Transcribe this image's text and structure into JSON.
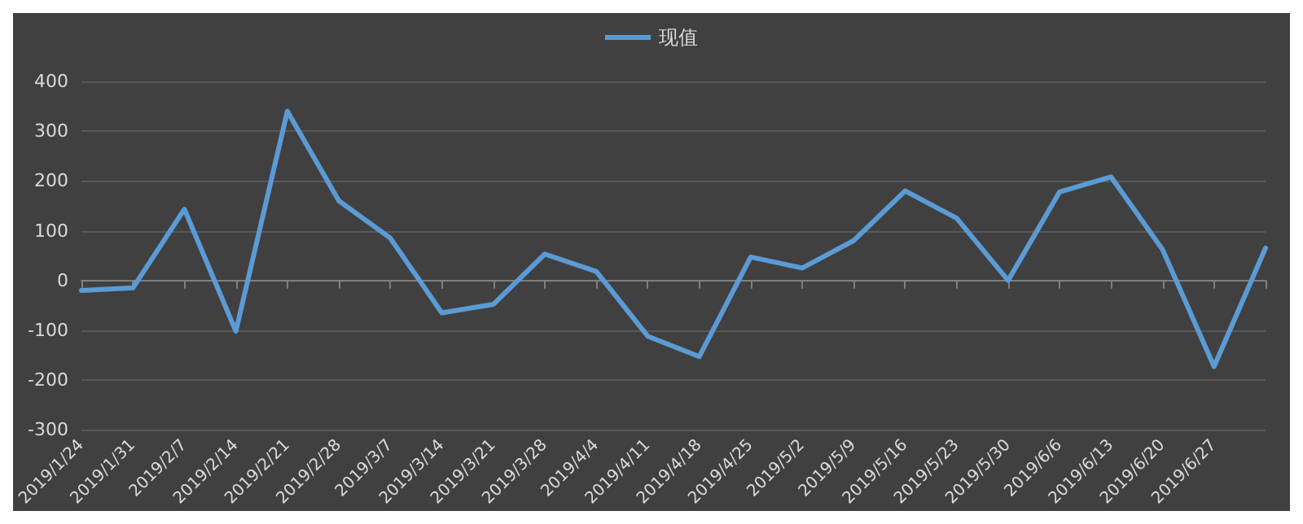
{
  "chart_data": {
    "type": "line",
    "categories": [
      "2019/1/24",
      "2019/1/31",
      "2019/2/7",
      "2019/2/14",
      "2019/2/21",
      "2019/2/28",
      "2019/3/7",
      "2019/3/14",
      "2019/3/21",
      "2019/3/28",
      "2019/4/4",
      "2019/4/11",
      "2019/4/18",
      "2019/4/25",
      "2019/5/2",
      "2019/5/9",
      "2019/5/16",
      "2019/5/23",
      "2019/5/30",
      "2019/6/6",
      "2019/6/13",
      "2019/6/20",
      "2019/6/27",
      null
    ],
    "series": [
      {
        "name": "现值",
        "color": "#5b9bd5",
        "values": [
          -20,
          -15,
          143,
          -102,
          340,
          160,
          85,
          -65,
          -48,
          53,
          18,
          -112,
          -153,
          47,
          25,
          80,
          180,
          125,
          0,
          178,
          208,
          62,
          -173,
          65
        ]
      }
    ],
    "ylim": [
      -300,
      400
    ],
    "yticks": [
      -300,
      -200,
      -100,
      0,
      100,
      200,
      300,
      400
    ],
    "grid": "y",
    "legend": "top",
    "marker": "none",
    "line_style": "solid"
  }
}
